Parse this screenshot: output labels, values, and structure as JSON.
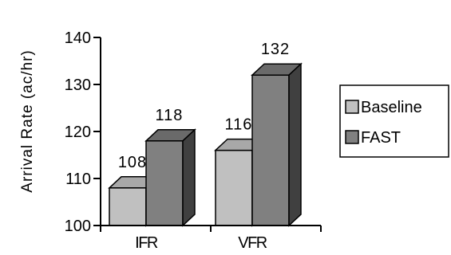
{
  "chart_data": {
    "type": "bar",
    "title": "",
    "xlabel": "",
    "ylabel": "Arrival  Rate  (ac/hr)",
    "ylim": [
      100,
      140
    ],
    "yticks": [
      100,
      110,
      120,
      130,
      140
    ],
    "categories": [
      "IFR",
      "VFR"
    ],
    "series": [
      {
        "name": "Baseline",
        "values": [
          108,
          116
        ],
        "color": "#c0c0c0"
      },
      {
        "name": "FAST",
        "values": [
          118,
          132
        ],
        "color": "#808080"
      }
    ],
    "data_labels": [
      [
        "108",
        "116"
      ],
      [
        "118",
        "132"
      ]
    ],
    "legend_position": "right",
    "grid": false,
    "style": "3d-bar"
  }
}
